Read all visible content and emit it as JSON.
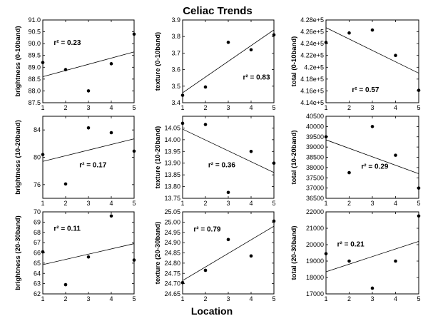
{
  "figure": {
    "title": "Celiac Trends",
    "xlabel": "Location"
  },
  "chart_data": [
    {
      "type": "scatter",
      "ylabel": "brightness (0-10band)",
      "x": [
        1,
        2,
        3,
        4,
        5
      ],
      "y": [
        89.2,
        88.9,
        88.0,
        89.15,
        90.4
      ],
      "xlim": [
        1,
        5
      ],
      "ylim": [
        87.5,
        91.0
      ],
      "yticks": [
        87.5,
        88,
        88.5,
        89,
        89.5,
        90,
        90.5,
        91
      ],
      "ytick_labels": [
        "87.5",
        "88.0",
        "88.5",
        "89.0",
        "89.5",
        "90.0",
        "90.5",
        "91.0"
      ],
      "xticks": [
        1,
        2,
        3,
        4,
        5
      ],
      "xtick_labels": [
        "1",
        "2",
        "3",
        "4",
        "5"
      ],
      "fit": {
        "y_at_x1": 88.6,
        "y_at_x5": 89.65
      },
      "r2_text": "r² = 0.23"
    },
    {
      "type": "scatter",
      "ylabel": "texture (0-10band)",
      "x": [
        1,
        2,
        3,
        4,
        5
      ],
      "y": [
        3.445,
        3.495,
        3.765,
        3.72,
        3.81
      ],
      "xlim": [
        1,
        5
      ],
      "ylim": [
        3.4,
        3.9
      ],
      "yticks": [
        3.4,
        3.5,
        3.6,
        3.7,
        3.8,
        3.9
      ],
      "ytick_labels": [
        "3.4",
        "3.5",
        "3.6",
        "3.7",
        "3.8",
        "3.9"
      ],
      "xticks": [
        1,
        2,
        3,
        4,
        5
      ],
      "xtick_labels": [
        "1",
        "2",
        "3",
        "4",
        "5"
      ],
      "fit": {
        "y_at_x1": 3.46,
        "y_at_x5": 3.84
      },
      "r2_text": "r² = 0.83"
    },
    {
      "type": "scatter",
      "ylabel": "total (0-10band)",
      "x": [
        1,
        2,
        3,
        4,
        5
      ],
      "y": [
        424200,
        425800,
        426300,
        422000,
        416100
      ],
      "xlim": [
        1,
        5
      ],
      "ylim": [
        414000,
        428000
      ],
      "yticks": [
        414000,
        416000,
        418000,
        420000,
        422000,
        424000,
        426000,
        428000
      ],
      "ytick_labels": [
        "4.14e+5",
        "4.16e+5",
        "4.18e+5",
        "4.2e+5",
        "4.22e+5",
        "4.24e+5",
        "4.26e+5",
        "4.28e+5"
      ],
      "xticks": [
        1,
        2,
        3,
        4,
        5
      ],
      "xtick_labels": [
        "1",
        "2",
        "3",
        "4",
        "5"
      ],
      "fit": {
        "y_at_x1": 426700,
        "y_at_x5": 419000
      },
      "r2_text": "r² = 0.57"
    },
    {
      "type": "scatter",
      "ylabel": "brightness (10-20band)",
      "x": [
        1,
        2,
        3,
        4,
        5
      ],
      "y": [
        80.4,
        76.1,
        84.3,
        83.6,
        80.9
      ],
      "xlim": [
        1,
        5
      ],
      "ylim": [
        74,
        86
      ],
      "yticks": [
        76,
        80,
        84
      ],
      "ytick_labels": [
        "76",
        "80",
        "84"
      ],
      "xticks": [
        1,
        2,
        3,
        4,
        5
      ],
      "xtick_labels": [
        "1",
        "2",
        "3",
        "4",
        "5"
      ],
      "fit": {
        "y_at_x1": 79.4,
        "y_at_x5": 82.7
      },
      "r2_text": "r² = 0.17"
    },
    {
      "type": "scatter",
      "ylabel": "texture (10-20band)",
      "x": [
        1,
        2,
        3,
        4,
        5
      ],
      "y": [
        14.07,
        14.065,
        13.775,
        13.95,
        13.9
      ],
      "xlim": [
        1,
        5
      ],
      "ylim": [
        13.75,
        14.1
      ],
      "yticks": [
        13.75,
        13.8,
        13.85,
        13.9,
        13.95,
        14,
        14.05
      ],
      "ytick_labels": [
        "13.75",
        "13.80",
        "13.85",
        "13.90",
        "13.95",
        "14.00",
        "14.05"
      ],
      "xticks": [
        1,
        2,
        3,
        4,
        5
      ],
      "xtick_labels": [
        "1",
        "2",
        "3",
        "4",
        "5"
      ],
      "fit": {
        "y_at_x1": 14.045,
        "y_at_x5": 13.86
      },
      "r2_text": "r² = 0.36"
    },
    {
      "type": "scatter",
      "ylabel": "total (10-20band)",
      "x": [
        1,
        2,
        3,
        4,
        5
      ],
      "y": [
        39500,
        37750,
        40000,
        38600,
        37000
      ],
      "xlim": [
        1,
        5
      ],
      "ylim": [
        36500,
        40500
      ],
      "yticks": [
        36500,
        37000,
        37500,
        38000,
        38500,
        39000,
        39500,
        40000,
        40500
      ],
      "ytick_labels": [
        "36500",
        "37000",
        "37500",
        "38000",
        "38500",
        "39000",
        "39500",
        "40000",
        "40500"
      ],
      "xticks": [
        1,
        2,
        3,
        4,
        5
      ],
      "xtick_labels": [
        "1",
        "2",
        "3",
        "4",
        "5"
      ],
      "fit": {
        "y_at_x1": 39350,
        "y_at_x5": 37700
      },
      "r2_text": "r² = 0.29"
    },
    {
      "type": "scatter",
      "ylabel": "brightness (20-30band)",
      "x": [
        1,
        2,
        3,
        4,
        5
      ],
      "y": [
        66.1,
        62.9,
        65.6,
        69.6,
        65.3
      ],
      "xlim": [
        1,
        5
      ],
      "ylim": [
        62,
        70
      ],
      "yticks": [
        62,
        63,
        64,
        65,
        66,
        67,
        68,
        69,
        70
      ],
      "ytick_labels": [
        "62",
        "63",
        "64",
        "65",
        "66",
        "67",
        "68",
        "69",
        "70"
      ],
      "xticks": [
        1,
        2,
        3,
        4,
        5
      ],
      "xtick_labels": [
        "1",
        "2",
        "3",
        "4",
        "5"
      ],
      "fit": {
        "y_at_x1": 64.85,
        "y_at_x5": 66.9
      },
      "r2_text": "r² = 0.11"
    },
    {
      "type": "scatter",
      "ylabel": "texture (20-30band)",
      "x": [
        1,
        2,
        3,
        4,
        5
      ],
      "y": [
        24.705,
        24.765,
        24.915,
        24.835,
        25.005
      ],
      "xlim": [
        1,
        5
      ],
      "ylim": [
        24.65,
        25.05
      ],
      "yticks": [
        24.65,
        24.7,
        24.75,
        24.8,
        24.85,
        24.9,
        24.95,
        25,
        25.05
      ],
      "ytick_labels": [
        "24.65",
        "24.70",
        "24.75",
        "24.80",
        "24.85",
        "24.90",
        "24.95",
        "25.00",
        "25.05"
      ],
      "xticks": [
        1,
        2,
        3,
        4,
        5
      ],
      "xtick_labels": [
        "1",
        "2",
        "3",
        "4",
        "5"
      ],
      "fit": {
        "y_at_x1": 24.715,
        "y_at_x5": 24.98
      },
      "r2_text": "r² = 0.79"
    },
    {
      "type": "scatter",
      "ylabel": "total (20-30band)",
      "x": [
        1,
        2,
        3,
        4,
        5
      ],
      "y": [
        19450,
        19000,
        17350,
        19000,
        21750
      ],
      "xlim": [
        1,
        5
      ],
      "ylim": [
        17000,
        22000
      ],
      "yticks": [
        17000,
        18000,
        19000,
        20000,
        21000,
        22000
      ],
      "ytick_labels": [
        "17000",
        "18000",
        "19000",
        "20000",
        "21000",
        "22000"
      ],
      "xticks": [
        1,
        2,
        3,
        4,
        5
      ],
      "xtick_labels": [
        "1",
        "2",
        "3",
        "4",
        "5"
      ],
      "fit": {
        "y_at_x1": 18350,
        "y_at_x5": 20200
      },
      "r2_text": "r² = 0.21"
    }
  ]
}
